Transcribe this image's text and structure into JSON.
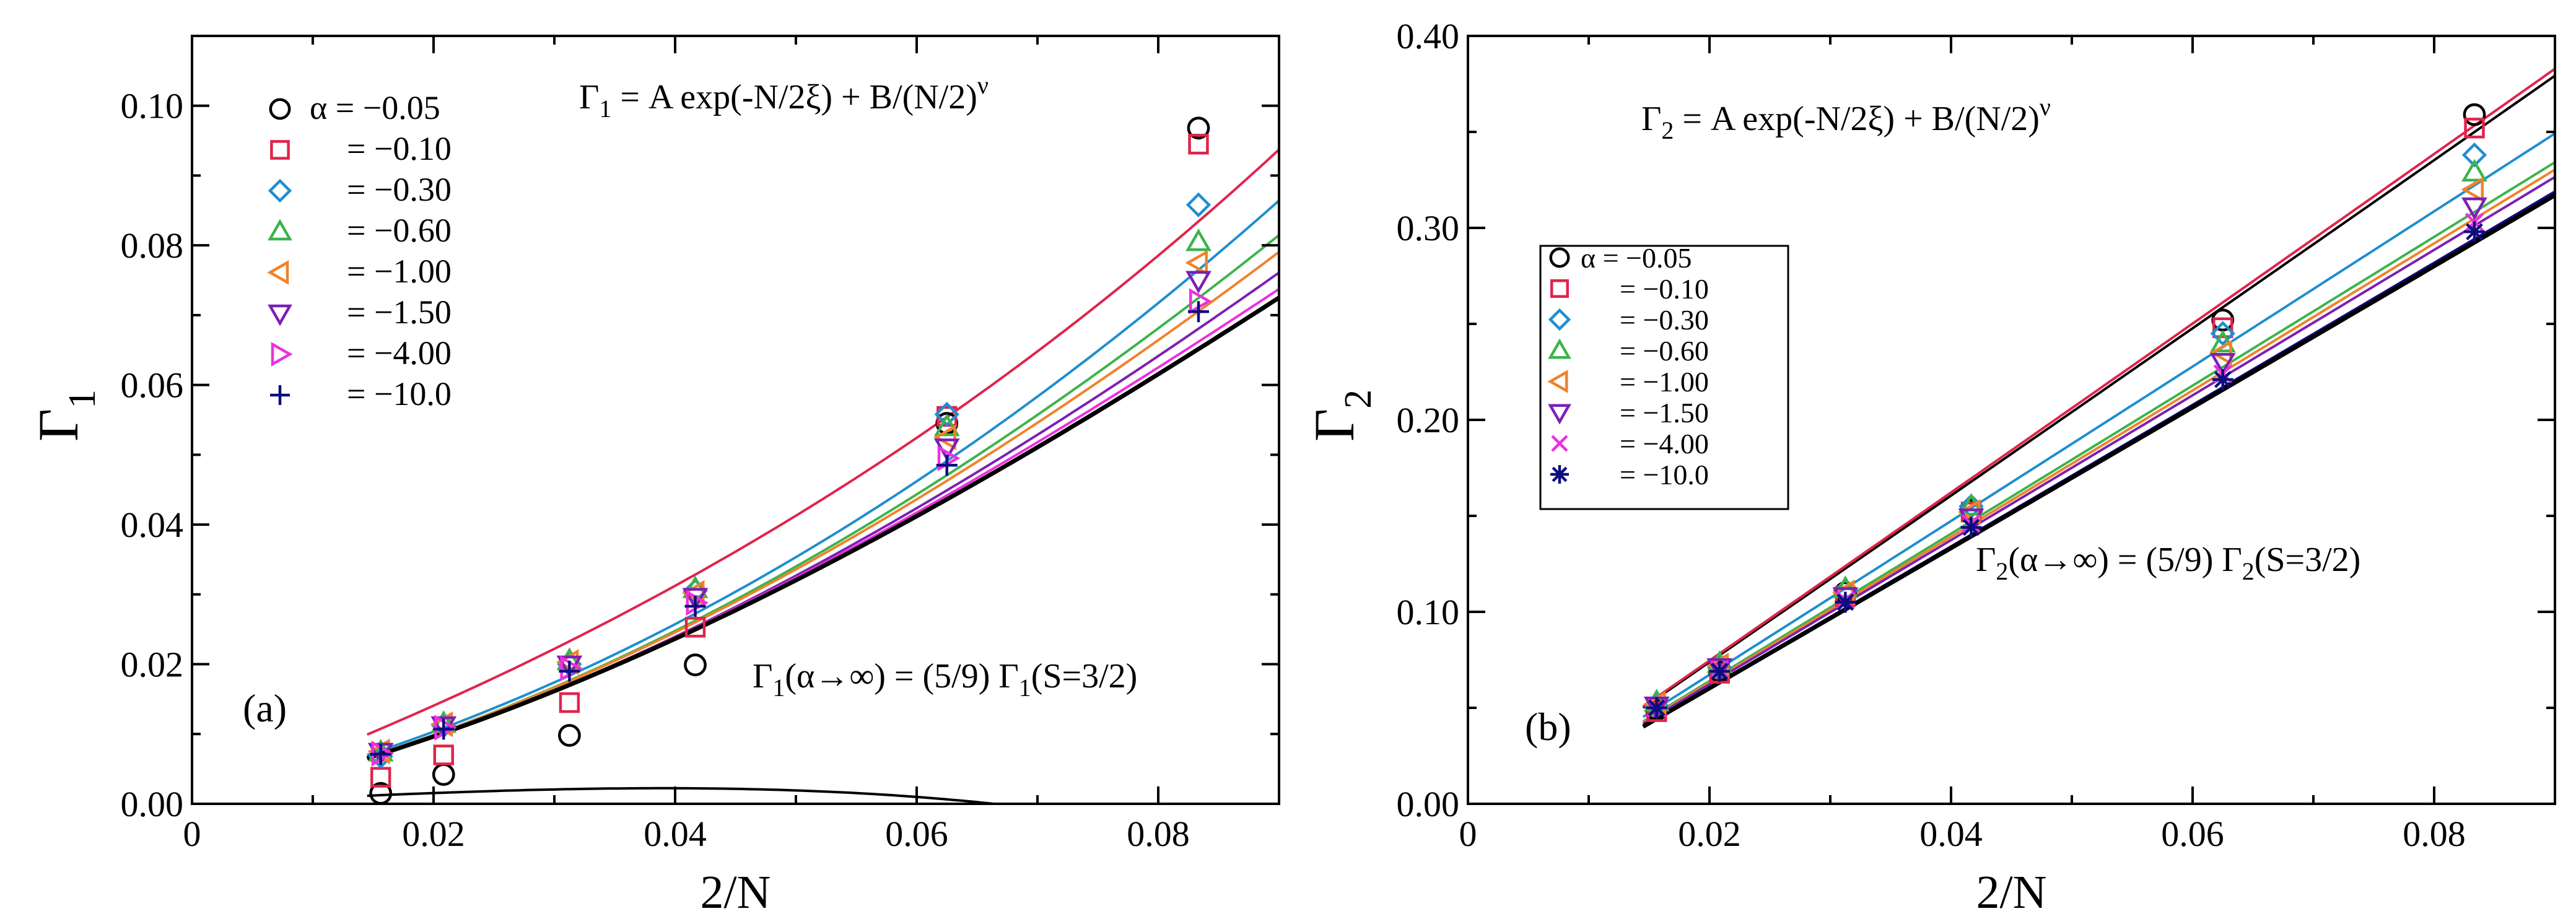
{
  "chart_data": [
    {
      "type": "scatter",
      "panel_label": "(a)",
      "xlabel": "2/N",
      "ylabel_main": "Γ",
      "ylabel_sub": "1",
      "xlim": [
        0,
        0.09
      ],
      "ylim": [
        0,
        0.11
      ],
      "xticks": [
        0,
        0.02,
        0.04,
        0.06,
        0.08
      ],
      "xticklabels": [
        "0",
        "0.02",
        "0.04",
        "0.06",
        "0.08"
      ],
      "yticks": [
        0,
        0.02,
        0.04,
        0.06,
        0.08,
        0.1
      ],
      "yticklabels": [
        "0.00",
        "0.02",
        "0.04",
        "0.06",
        "0.08",
        "0.10"
      ],
      "formula": {
        "prefix": "Γ",
        "sub": "1",
        "rest": " = A exp(-N/2ξ) + B/(N/2)",
        "sup": "ν"
      },
      "annotation": {
        "p1": "Γ",
        "s1": "1",
        "p2": "(α→∞) = (5/9) Γ",
        "s2": "1",
        "p3": "(S=3/2)"
      },
      "legend_title": "α",
      "legend_position": "top-left",
      "x": [
        0.015625,
        0.020833,
        0.03125,
        0.041667,
        0.0625,
        0.083333
      ],
      "series": [
        {
          "name": "−0.05",
          "label": "α = −0.05",
          "marker": "circle",
          "color": "#000000",
          "values": [
            0.0015,
            0.0042,
            0.0098,
            0.0199,
            0.0545,
            0.0968
          ]
        },
        {
          "name": "−0.10",
          "label": "= −0.10",
          "marker": "square",
          "color": "#e0244c",
          "values": [
            0.0038,
            0.007,
            0.0145,
            0.0253,
            0.0555,
            0.0945
          ]
        },
        {
          "name": "−0.30",
          "label": "= −0.30",
          "marker": "diamond",
          "color": "#1f8ed0",
          "values": [
            0.0068,
            0.0112,
            0.02,
            0.0305,
            0.0558,
            0.0858
          ]
        },
        {
          "name": "−0.60",
          "label": "= −0.60",
          "marker": "triangle-up",
          "color": "#3cb44b",
          "values": [
            0.0074,
            0.0115,
            0.0205,
            0.0308,
            0.054,
            0.0805
          ]
        },
        {
          "name": "−1.00",
          "label": "= −1.00",
          "marker": "triangle-left",
          "color": "#f0822a",
          "values": [
            0.0075,
            0.0114,
            0.0203,
            0.0302,
            0.0525,
            0.0775
          ]
        },
        {
          "name": "−1.50",
          "label": "= −1.50",
          "marker": "triangle-down",
          "color": "#7d1fb4",
          "values": [
            0.0074,
            0.0112,
            0.0199,
            0.0296,
            0.051,
            0.075
          ]
        },
        {
          "name": "−4.00",
          "label": "= −4.00",
          "marker": "triangle-right",
          "color": "#ee2fdf",
          "values": [
            0.0072,
            0.0109,
            0.0194,
            0.0288,
            0.0495,
            0.072
          ]
        },
        {
          "name": "−10.0",
          "label": "= −10.0",
          "marker": "plus",
          "color": "#0d0d80",
          "values": [
            0.0071,
            0.0107,
            0.019,
            0.0283,
            0.0485,
            0.0705
          ]
        }
      ],
      "fit_curves": [
        {
          "series": "−0.05",
          "a": 0.08,
          "b": 0.3035,
          "c": -22.72
        },
        {
          "series": "−0.10",
          "a": 0.64,
          "b": 2.7734,
          "c": 18.72
        },
        {
          "series": "−0.30",
          "a": 0.39,
          "b": 6.3305,
          "c": 0.045
        },
        {
          "series": "−0.60",
          "a": 0.36,
          "b": 6.8219,
          "c": -8.5
        },
        {
          "series": "−1.00",
          "a": 0.36,
          "b": 6.8288,
          "c": -11.89
        },
        {
          "series": "−1.50",
          "a": 0.35,
          "b": 6.7807,
          "c": -14.17
        },
        {
          "series": "−4.00",
          "a": 0.36,
          "b": 6.5562,
          "c": -16.13
        },
        {
          "series": "−10.0",
          "a": 0.36,
          "b": 6.4353,
          "c": -16.49
        },
        {
          "series": "limit",
          "a": 0.36,
          "b": 6.4353,
          "c": -16.49
        }
      ]
    },
    {
      "type": "scatter",
      "panel_label": "(b)",
      "xlabel": "2/N",
      "ylabel_main": "Γ",
      "ylabel_sub": "2",
      "xlim": [
        0,
        0.09
      ],
      "ylim": [
        0,
        0.4
      ],
      "xticks": [
        0,
        0.02,
        0.04,
        0.06,
        0.08
      ],
      "xticklabels": [
        "0",
        "0.02",
        "0.04",
        "0.06",
        "0.08"
      ],
      "yticks": [
        0,
        0.1,
        0.2,
        0.3,
        0.4
      ],
      "yticklabels": [
        "0.00",
        "0.10",
        "0.20",
        "0.30",
        "0.40"
      ],
      "formula": {
        "prefix": "Γ",
        "sub": "2",
        "rest": " = A exp(-N/2ξ) + B/(N/2)",
        "sup": "ν"
      },
      "annotation": {
        "p1": "Γ",
        "s1": "2",
        "p2": "(α→∞) = (5/9) Γ",
        "s2": "2",
        "p3": "(S=3/2)"
      },
      "legend_title": "α",
      "legend_position": "upper-left",
      "x": [
        0.015625,
        0.020833,
        0.03125,
        0.041667,
        0.0625,
        0.083333
      ],
      "series": [
        {
          "name": "−0.05",
          "label": "α = −0.05",
          "marker": "circle",
          "color": "#000000",
          "values": [
            0.049,
            0.069,
            0.11,
            0.153,
            0.252,
            0.359
          ]
        },
        {
          "name": "−0.10",
          "label": "= −0.10",
          "marker": "square",
          "color": "#e0244c",
          "values": [
            0.048,
            0.068,
            0.108,
            0.152,
            0.248,
            0.352
          ]
        },
        {
          "name": "−0.30",
          "label": "= −0.30",
          "marker": "diamond",
          "color": "#1f8ed0",
          "values": [
            0.051,
            0.071,
            0.111,
            0.155,
            0.245,
            0.338
          ]
        },
        {
          "name": "−0.60",
          "label": "= −0.60",
          "marker": "triangle-up",
          "color": "#3cb44b",
          "values": [
            0.053,
            0.073,
            0.112,
            0.155,
            0.24,
            0.329
          ]
        },
        {
          "name": "−1.00",
          "label": "= −1.00",
          "marker": "triangle-left",
          "color": "#f0822a",
          "values": [
            0.052,
            0.072,
            0.11,
            0.152,
            0.235,
            0.32
          ]
        },
        {
          "name": "−1.50",
          "label": "= −1.50",
          "marker": "triangle-down",
          "color": "#7d1fb4",
          "values": [
            0.051,
            0.071,
            0.108,
            0.149,
            0.23,
            0.311
          ]
        },
        {
          "name": "−4.00",
          "label": "= −4.00",
          "marker": "x",
          "color": "#ee2fdf",
          "values": [
            0.05,
            0.07,
            0.106,
            0.146,
            0.224,
            0.303
          ]
        },
        {
          "name": "−10.0",
          "label": "= −10.0",
          "marker": "asterisk",
          "color": "#0d0d80",
          "values": [
            0.05,
            0.069,
            0.105,
            0.144,
            0.221,
            0.298
          ]
        }
      ],
      "fit_curves": [
        {
          "series": "−0.05",
          "a": 1.05,
          "b": 4.42
        },
        {
          "series": "−0.10",
          "a": 1.06,
          "b": 4.34
        },
        {
          "series": "−0.30",
          "a": 0.97,
          "b": 3.86
        },
        {
          "series": "−0.60",
          "a": 0.93,
          "b": 3.62
        },
        {
          "series": "−1.00",
          "a": 0.92,
          "b": 3.48
        },
        {
          "series": "−1.50",
          "a": 0.91,
          "b": 3.32
        },
        {
          "series": "−4.00",
          "a": 0.89,
          "b": 3.15
        },
        {
          "series": "−10.0",
          "a": 0.89,
          "b": 3.09
        },
        {
          "series": "limit",
          "a": 0.885,
          "b": 3.05
        }
      ]
    }
  ]
}
